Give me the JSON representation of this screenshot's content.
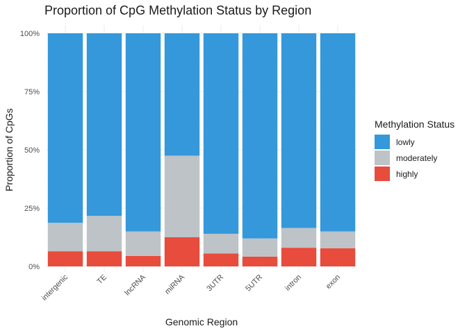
{
  "chart_data": {
    "type": "bar",
    "stacked": true,
    "title": "Proportion of CpG Methylation Status by Region",
    "xlabel": "Genomic Region",
    "ylabel": "Proportion of CpGs",
    "ylim": [
      0,
      1
    ],
    "yticks": [
      0,
      0.25,
      0.5,
      0.75,
      1.0
    ],
    "ytick_labels": [
      "0%",
      "25%",
      "50%",
      "75%",
      "100%"
    ],
    "categories": [
      "intergenic",
      "TE",
      "lncRNA",
      "miRNA",
      "3UTR",
      "5UTR",
      "intron",
      "exon"
    ],
    "series": [
      {
        "name": "highly",
        "color": "#e74c3c",
        "values": [
          0.065,
          0.065,
          0.045,
          0.125,
          0.055,
          0.042,
          0.08,
          0.078
        ]
      },
      {
        "name": "moderately",
        "color": "#bdc3c7",
        "values": [
          0.122,
          0.152,
          0.105,
          0.35,
          0.085,
          0.078,
          0.085,
          0.072
        ]
      },
      {
        "name": "lowly",
        "color": "#3498db",
        "values": [
          0.813,
          0.783,
          0.85,
          0.525,
          0.86,
          0.88,
          0.835,
          0.85
        ]
      }
    ],
    "legend": {
      "title": "Methylation Status",
      "position": "right",
      "order": [
        "lowly",
        "moderately",
        "highly"
      ]
    },
    "grid": true
  }
}
